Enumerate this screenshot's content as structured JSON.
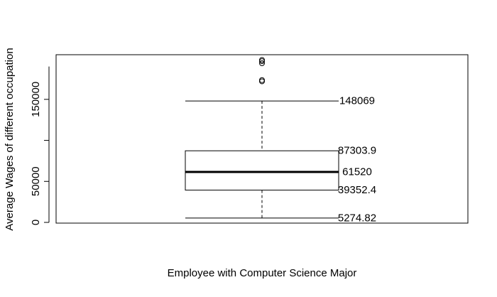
{
  "chart_data": {
    "type": "boxplot",
    "title": "",
    "xlabel": "Employee with Computer Science Major",
    "ylabel": "Average Wages of different occupation",
    "ylim": [
      0,
      200000
    ],
    "yticks": [
      0,
      50000,
      150000
    ],
    "ytick_labels": [
      "0",
      "50000",
      "150000"
    ],
    "grid": false,
    "box": {
      "lower_whisker": 5274.82,
      "q1": 39352.4,
      "median": 61520,
      "q3": 87303.9,
      "upper_whisker": 148069
    },
    "outliers": [
      172000,
      173500,
      194000,
      196500,
      198000
    ],
    "annotations": [
      {
        "value": 148069,
        "label": "148069"
      },
      {
        "value": 87303.9,
        "label": "87303.9"
      },
      {
        "value": 61520,
        "label": "61520"
      },
      {
        "value": 39352.4,
        "label": "39352.4"
      },
      {
        "value": 5274.82,
        "label": "5274.82"
      }
    ]
  }
}
